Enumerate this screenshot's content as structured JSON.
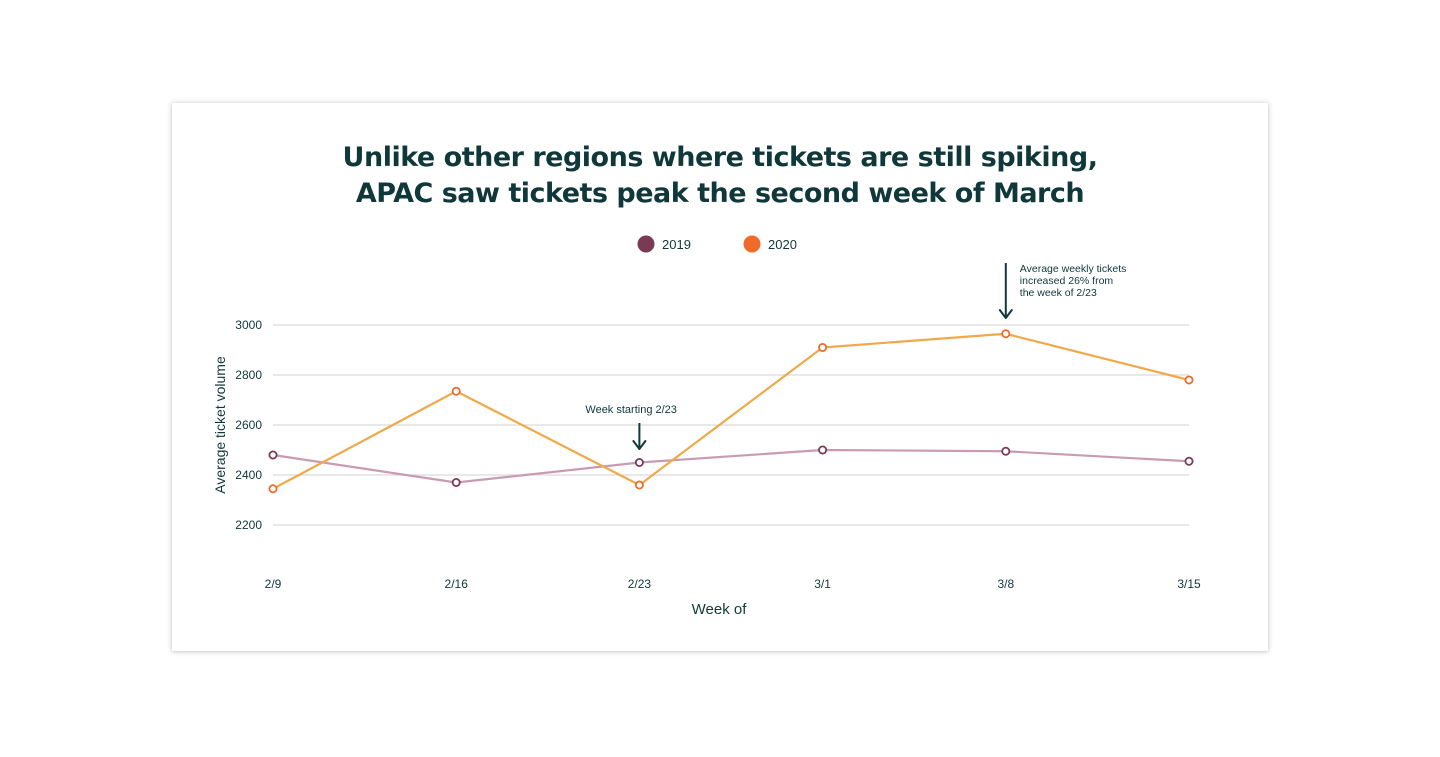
{
  "chart_data": {
    "type": "line",
    "title": [
      "Unlike other regions where tickets are still spiking,",
      "APAC saw tickets peak the second week of March"
    ],
    "xlabel": "Week of",
    "ylabel": "Average ticket volume",
    "categories": [
      "2/9",
      "2/16",
      "2/23",
      "3/1",
      "3/8",
      "3/15"
    ],
    "ylim": [
      2200,
      3000
    ],
    "yticks": [
      "2200",
      "2400",
      "2600",
      "2800",
      "3000"
    ],
    "grid": true,
    "legend_position": "top-center",
    "series": [
      {
        "name": "2019",
        "color": "#c99bb3",
        "marker_color": "#7a3a55",
        "legend_color": "#7a3a55",
        "values": [
          2480,
          2370,
          2450,
          2500,
          2495,
          2455
        ]
      },
      {
        "name": "2020",
        "color": "#f0a94a",
        "marker_color": "#f06a2a",
        "legend_color": "#f06a2a",
        "values": [
          2345,
          2735,
          2360,
          2910,
          2965,
          2780
        ]
      }
    ],
    "annotations": [
      {
        "id": "feb23",
        "category": "2/23",
        "lines": [
          "Week starting 2/23"
        ]
      },
      {
        "id": "mar8",
        "category": "3/8",
        "lines": [
          "Average weekly tickets",
          "increased 26% from",
          "the week of 2/23"
        ]
      }
    ]
  },
  "colors": {
    "text": "#10383a",
    "grid": "#d9d9d9"
  }
}
